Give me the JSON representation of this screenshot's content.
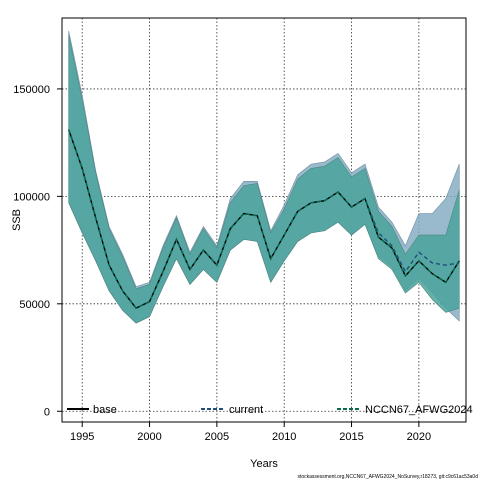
{
  "chart_data": {
    "type": "area",
    "xlabel": "Years",
    "ylabel": "SSB",
    "xlim": [
      1993.5,
      2023.5
    ],
    "ylim": [
      -5000,
      183000
    ],
    "x_ticks": [
      1995,
      2000,
      2005,
      2010,
      2015,
      2020
    ],
    "y_ticks": [
      0,
      50000,
      100000,
      150000
    ],
    "grid": "dotted",
    "legend_position": "bottom",
    "x": [
      1994,
      1995,
      1996,
      1997,
      1998,
      1999,
      2000,
      2001,
      2002,
      2003,
      2004,
      2005,
      2006,
      2007,
      2008,
      2009,
      2010,
      2011,
      2012,
      2013,
      2014,
      2015,
      2016,
      2017,
      2018,
      2019,
      2020,
      2021,
      2022,
      2023
    ],
    "series": [
      {
        "name": "base",
        "color": "#000000",
        "line_style": "solid",
        "values": [
          131000,
          113000,
          90000,
          68000,
          56000,
          48000,
          51000,
          65000,
          80000,
          66000,
          75000,
          68000,
          85000,
          92000,
          91000,
          71000,
          82000,
          93000,
          97000,
          98000,
          102000,
          95000,
          99000,
          81000,
          76000,
          63000,
          70000,
          64000,
          60000,
          70000
        ],
        "lower": [
          97000,
          83000,
          70000,
          56000,
          47000,
          41000,
          44000,
          58000,
          71000,
          59000,
          66000,
          60000,
          75000,
          80000,
          79000,
          60000,
          70000,
          79000,
          83000,
          84000,
          88000,
          82000,
          87000,
          71000,
          66000,
          55000,
          60000,
          52000,
          46000,
          48000
        ],
        "upper": [
          175000,
          145000,
          111000,
          85000,
          72000,
          57000,
          59000,
          76000,
          90000,
          73000,
          85000,
          76000,
          97000,
          105000,
          106000,
          83000,
          94000,
          108000,
          113000,
          114000,
          118000,
          109000,
          113000,
          93000,
          86000,
          73000,
          82000,
          82000,
          82000,
          103000
        ]
      },
      {
        "name": "current",
        "color": "#1f4e79",
        "line_style": "dashed",
        "values": [
          131000,
          113000,
          90000,
          68000,
          56000,
          48000,
          51000,
          65000,
          80000,
          66000,
          75000,
          68000,
          85000,
          92000,
          91000,
          71000,
          82000,
          93000,
          97000,
          98000,
          102000,
          95000,
          99000,
          83000,
          77000,
          65000,
          74000,
          69000,
          68000,
          69000
        ],
        "lower": [
          97000,
          83000,
          70000,
          56000,
          47000,
          41000,
          44000,
          58000,
          71000,
          59000,
          66000,
          60000,
          75000,
          80000,
          79000,
          60000,
          70000,
          79000,
          83000,
          84000,
          88000,
          82000,
          87000,
          72000,
          67000,
          56000,
          62000,
          55000,
          48000,
          42000
        ],
        "upper": [
          177000,
          147000,
          112000,
          86000,
          73000,
          58000,
          60000,
          77000,
          91000,
          74000,
          86000,
          77000,
          99000,
          107000,
          107000,
          84000,
          96000,
          110000,
          115000,
          116000,
          120000,
          111000,
          115000,
          95000,
          88000,
          77000,
          92000,
          92000,
          99000,
          115000
        ]
      },
      {
        "name": "NCCN67_AFWG2024",
        "color": "#0b6b4f",
        "line_style": "dashed",
        "values": [
          131000,
          113000,
          90000,
          68000,
          56000,
          48000,
          51000,
          65000,
          80000,
          66000,
          75000,
          68000,
          85000,
          92000,
          91000,
          71000,
          82000,
          93000,
          97000,
          98000,
          102000,
          95000,
          99000,
          81000,
          76000,
          63000,
          70000,
          64000,
          60000,
          70000
        ],
        "lower": [
          97000,
          83000,
          70000,
          56000,
          47000,
          41000,
          44000,
          58000,
          71000,
          59000,
          66000,
          60000,
          75000,
          80000,
          79000,
          60000,
          70000,
          79000,
          83000,
          84000,
          88000,
          82000,
          87000,
          71000,
          66000,
          55000,
          60000,
          52000,
          46000,
          48000
        ],
        "upper": [
          175000,
          145000,
          111000,
          85000,
          72000,
          57000,
          59000,
          76000,
          90000,
          73000,
          85000,
          76000,
          97000,
          105000,
          106000,
          83000,
          94000,
          108000,
          113000,
          114000,
          118000,
          109000,
          113000,
          93000,
          86000,
          73000,
          82000,
          82000,
          82000,
          103000
        ]
      }
    ]
  },
  "footnote": "stockassessment.org,NCCN67_AFWG2024_NoSurvey,r18273, git:c9c61ac53a0d",
  "colors": {
    "band_current": "#7fa9c0",
    "band_base": "#4aa59c",
    "frame": "#000000",
    "grid": "#333333"
  }
}
